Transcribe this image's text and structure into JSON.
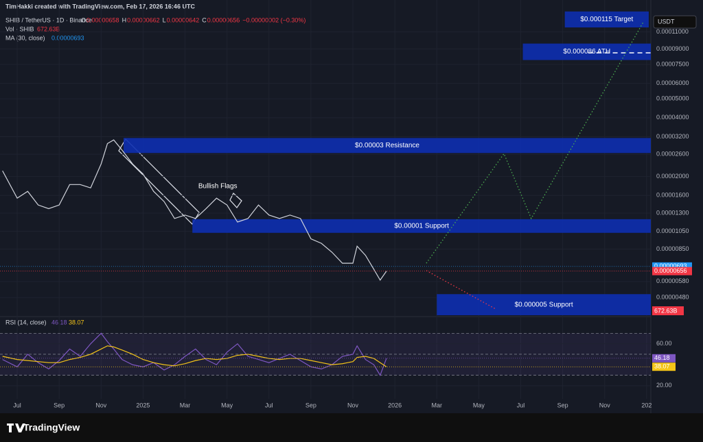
{
  "header": {
    "credit": "TimHakki created with TradingView.com, Feb 17, 2026 16:46 UTC",
    "symbol": "SHIB / TetherUS · 1D · Binance",
    "ohlc": [
      {
        "key": "O",
        "value": "0.00000658"
      },
      {
        "key": "H",
        "value": "0.00000662"
      },
      {
        "key": "L",
        "value": "0.00000642"
      },
      {
        "key": "C",
        "value": "0.00000656"
      }
    ],
    "change": "−0.00000002 (−0.30%)",
    "volume_label": "Vol · SHIB",
    "volume": "672.63B",
    "ma_label": "MA (30, close)",
    "rsi_label": "RSI (14, close)",
    "axis_unit": "USDT"
  },
  "footer": {
    "logo": "TradingView"
  },
  "chart_data": [
    {
      "type": "line",
      "log_scale": true,
      "x": [
        -0.7,
        0,
        0.5,
        1,
        1.5,
        2,
        2.5,
        3,
        3.5,
        4,
        4.3,
        4.6,
        5,
        5.5,
        6,
        6.5,
        7,
        7.5,
        8,
        8.5,
        9,
        9.5,
        10,
        10.5,
        11,
        11.5,
        12,
        12.5,
        13,
        13.5,
        14,
        14.5,
        15,
        15.5,
        16,
        16.2,
        16.6,
        17,
        17.3,
        17.6
      ],
      "series": [
        {
          "color": "#d1d4dc",
          "values": [
            2.14e-05,
            1.55e-05,
            1.68e-05,
            1.43e-05,
            1.37e-05,
            1.43e-05,
            1.82e-05,
            1.82e-05,
            1.75e-05,
            2.32e-05,
            2.95e-05,
            3.08e-05,
            2.73e-05,
            2.32e-05,
            2.06e-05,
            1.68e-05,
            1.49e-05,
            1.22e-05,
            1.27e-05,
            1.22e-05,
            1.37e-05,
            1.55e-05,
            1.43e-05,
            1.17e-05,
            1.22e-05,
            1.43e-05,
            1.27e-05,
            1.22e-05,
            1.27e-05,
            1.22e-05,
            9.6e-06,
            9.1e-06,
            8.2e-06,
            7.2e-06,
            7.2e-06,
            8.8e-06,
            7.9e-06,
            6.7e-06,
            5.9e-06,
            6.56e-06
          ]
        }
      ],
      "xlim": [
        -0.82,
        30.2
      ],
      "xticks": [
        {
          "value": 0,
          "label": "Jul"
        },
        {
          "value": 2,
          "label": "Sep"
        },
        {
          "value": 4,
          "label": "Nov"
        },
        {
          "value": 6,
          "label": "2025"
        },
        {
          "value": 8,
          "label": "Mar"
        },
        {
          "value": 10,
          "label": "May"
        },
        {
          "value": 12,
          "label": "Jul"
        },
        {
          "value": 14,
          "label": "Sep"
        },
        {
          "value": 16,
          "label": "Nov"
        },
        {
          "value": 18,
          "label": "2026"
        },
        {
          "value": 20,
          "label": "Mar"
        },
        {
          "value": 22,
          "label": "May"
        },
        {
          "value": 24,
          "label": "Jul"
        },
        {
          "value": 26,
          "label": "Sep"
        },
        {
          "value": 28,
          "label": "Nov"
        },
        {
          "value": 30,
          "label": "202"
        }
      ],
      "ylim": [
        3.9e-06,
        0.000142
      ],
      "yticks": [
        {
          "value": 0.00011,
          "label": "0.00011000"
        },
        {
          "value": 9e-05,
          "label": "0.00009000"
        },
        {
          "value": 7.5e-05,
          "label": "0.00007500"
        },
        {
          "value": 6e-05,
          "label": "0.00006000"
        },
        {
          "value": 5e-05,
          "label": "0.00005000"
        },
        {
          "value": 4e-05,
          "label": "0.00004000"
        },
        {
          "value": 3.2e-05,
          "label": "0.00003200"
        },
        {
          "value": 2.6e-05,
          "label": "0.00002600"
        },
        {
          "value": 2e-05,
          "label": "0.00002000"
        },
        {
          "value": 1.6e-05,
          "label": "0.00001600"
        },
        {
          "value": 1.3e-05,
          "label": "0.00001300"
        },
        {
          "value": 1.05e-05,
          "label": "0.00001050"
        },
        {
          "value": 8.5e-06,
          "label": "0.00000850"
        },
        {
          "value": 5.8e-06,
          "label": "0.00000580"
        },
        {
          "value": 4.8e-06,
          "label": "0.00000480"
        }
      ],
      "zones": [
        {
          "label": "$0.000115 Target",
          "x": [
            26.1,
            30.1
          ],
          "y": [
            0.000116,
            0.00014
          ],
          "color": "#0d2fb0"
        },
        {
          "label": "$0.000086 ATH",
          "x": [
            24.1,
            30.2
          ],
          "y": [
            7.9e-05,
            9.59e-05
          ],
          "color": "#0d2fb0",
          "level": 8.6e-05
        },
        {
          "label": "$0.00003 Resistance",
          "x": [
            5.07,
            30.2
          ],
          "y": [
            2.64e-05,
            3.15e-05
          ],
          "color": "#0d2fb0"
        },
        {
          "label": "$0.00001 Support",
          "x": [
            8.35,
            30.2
          ],
          "y": [
            1.03e-05,
            1.21e-05
          ],
          "color": "#0d2fb0"
        },
        {
          "label": "$0.000005 Support",
          "x": [
            20.0,
            30.2
          ],
          "y": [
            3.9e-06,
            5e-06
          ],
          "color": "#0d2fb0"
        }
      ],
      "annotations": [
        {
          "text": "Bullish Flags",
          "x": 9.56,
          "y": 1.78e-05
        }
      ],
      "projections": [
        {
          "color": "#4caf50",
          "x": [
            19.5,
            23.2,
            24.5,
            29.85
          ],
          "values": [
            7.2e-06,
            2.62e-05,
            1.22e-05,
            0.000124
          ]
        },
        {
          "color": "#f23645",
          "x": [
            19.5,
            22.8
          ],
          "values": [
            6.6e-06,
            4.2e-06
          ]
        }
      ],
      "price_labels": [
        {
          "value": 6.93e-06,
          "label": "0.00000693",
          "color": "#2196f3"
        },
        {
          "value": 6.56e-06,
          "label": "0.00000656",
          "color": "#f23645"
        }
      ]
    },
    {
      "type": "line",
      "x": [
        -0.7,
        0,
        0.5,
        1,
        1.5,
        2,
        2.5,
        3,
        3.5,
        4,
        4.3,
        4.6,
        5,
        5.5,
        6,
        6.5,
        7,
        7.5,
        8,
        8.5,
        9,
        9.5,
        10,
        10.5,
        11,
        11.5,
        12,
        12.5,
        13,
        13.5,
        14,
        14.5,
        15,
        15.5,
        16,
        16.2,
        16.6,
        17,
        17.3,
        17.6
      ],
      "series": [
        {
          "color": "#7e57c2",
          "values": [
            45,
            38,
            50,
            42,
            36,
            44,
            55,
            48,
            60,
            70,
            62,
            55,
            45,
            40,
            38,
            42,
            35,
            40,
            48,
            55,
            45,
            40,
            52,
            60,
            48,
            45,
            42,
            46,
            50,
            44,
            38,
            36,
            40,
            48,
            50,
            58,
            45,
            40,
            30,
            46.18
          ]
        },
        {
          "color": "#f5c518",
          "values": [
            48,
            45,
            44,
            43,
            42,
            42,
            45,
            47,
            50,
            55,
            58,
            57,
            54,
            50,
            45,
            42,
            40,
            39,
            41,
            44,
            46,
            45,
            46,
            49,
            50,
            48,
            46,
            45,
            46,
            46,
            44,
            42,
            40,
            41,
            43,
            47,
            48,
            46,
            42,
            38.07
          ]
        }
      ],
      "xlim": [
        -0.82,
        30.2
      ],
      "ylim": [
        7.5,
        84.6
      ],
      "yticks": [
        {
          "value": 60,
          "label": "60.00"
        },
        {
          "value": 20,
          "label": "20.00"
        }
      ],
      "levels": [
        70,
        50,
        30
      ],
      "price_labels": [
        {
          "value": 46.18,
          "label": "46.18",
          "color": "#7e57c2"
        },
        {
          "value": 38.07,
          "label": "38.07",
          "color": "#f5c518"
        }
      ]
    }
  ]
}
